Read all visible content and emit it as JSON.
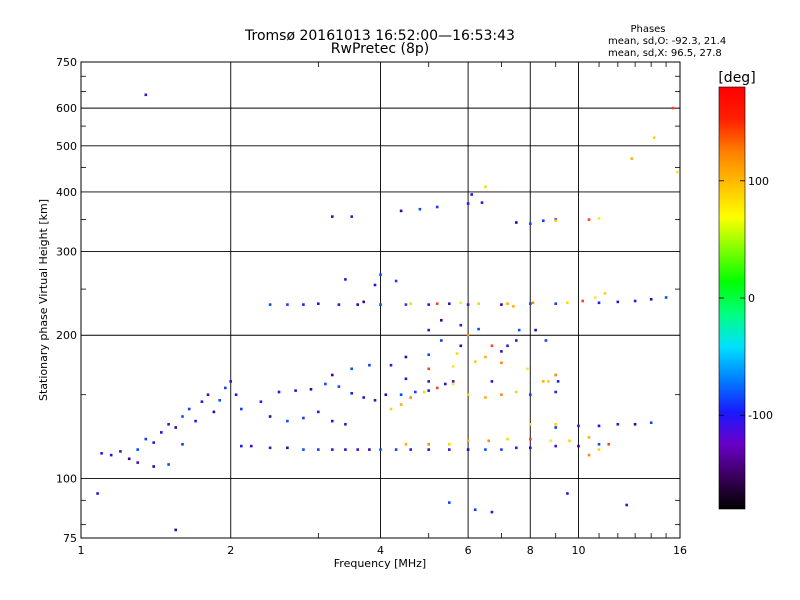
{
  "chart_data": {
    "type": "scatter",
    "title": "Tromsø 20161013 16:52:00—16:53:43",
    "subtitle": "RwPretec (8p)",
    "xlabel": "Frequency [MHz]",
    "ylabel": "Stationary phase Virtual Height [km]",
    "x_scale": "log",
    "y_scale": "log",
    "xlim": [
      1,
      16
    ],
    "ylim": [
      75,
      750
    ],
    "x_ticks": [
      1,
      2,
      4,
      6,
      8,
      10,
      16
    ],
    "x_tick_labels": [
      "1",
      "2",
      "4",
      "6",
      "8",
      "10",
      "16"
    ],
    "y_ticks": [
      75,
      100,
      200,
      300,
      400,
      500,
      600,
      750
    ],
    "y_tick_labels": [
      "75",
      "100",
      "200",
      "300",
      "400",
      "500",
      "600",
      "750"
    ],
    "x_minor_ticks": [
      3,
      5,
      7,
      9,
      11,
      12,
      13,
      14,
      15
    ],
    "y_minor_ticks": [
      80,
      90,
      150,
      250,
      350,
      450,
      550,
      650,
      700
    ],
    "grid": true,
    "legend": {
      "heading": "Phases",
      "lines": [
        "mean, sd,O: -92.3, 21.4",
        "mean, sd,X:  96.5, 27.8"
      ],
      "placement": "top-right"
    },
    "colorbar": {
      "label": "[deg]",
      "range": [
        -180,
        180
      ],
      "ticks": [
        100,
        0,
        -100
      ],
      "tick_labels": [
        "100",
        "0",
        "-100"
      ],
      "colors": [
        "#000000",
        "#3a005c",
        "#6a00c8",
        "#1a1aff",
        "#0080ff",
        "#00e0ff",
        "#00ff80",
        "#00ff00",
        "#80ff00",
        "#ffff00",
        "#ffc000",
        "#ff8000",
        "#ff2000",
        "#ff0000"
      ]
    },
    "series": [
      {
        "points": [
          [
            1.1,
            113
          ],
          [
            1.15,
            112
          ],
          [
            1.2,
            114
          ],
          [
            1.25,
            110
          ],
          [
            1.3,
            115
          ],
          [
            1.35,
            121
          ],
          [
            1.4,
            119
          ],
          [
            1.45,
            125
          ],
          [
            1.5,
            130
          ],
          [
            1.55,
            128
          ],
          [
            1.6,
            135
          ],
          [
            1.65,
            140
          ],
          [
            1.7,
            132
          ],
          [
            1.75,
            145
          ],
          [
            1.8,
            150
          ],
          [
            1.85,
            138
          ],
          [
            1.9,
            146
          ],
          [
            1.95,
            155
          ],
          [
            2.0,
            160
          ],
          [
            2.05,
            150
          ],
          [
            1.3,
            108
          ],
          [
            1.4,
            106
          ],
          [
            1.5,
            107
          ],
          [
            1.6,
            118
          ],
          [
            2.1,
            117
          ],
          [
            2.2,
            117
          ],
          [
            2.4,
            116
          ],
          [
            2.6,
            116
          ],
          [
            2.8,
            115
          ],
          [
            3.0,
            115
          ],
          [
            3.2,
            115
          ],
          [
            3.4,
            115
          ],
          [
            3.6,
            115
          ],
          [
            3.8,
            115
          ],
          [
            4.0,
            115
          ],
          [
            4.3,
            115
          ],
          [
            4.6,
            115
          ],
          [
            5.0,
            115
          ],
          [
            5.5,
            115
          ],
          [
            6.0,
            115
          ],
          [
            6.5,
            115
          ],
          [
            7.0,
            115
          ],
          [
            7.5,
            116
          ],
          [
            8.0,
            116
          ],
          [
            9.0,
            117
          ],
          [
            10.0,
            117
          ],
          [
            11.0,
            118
          ],
          [
            2.1,
            140
          ],
          [
            2.3,
            145
          ],
          [
            2.5,
            152
          ],
          [
            2.7,
            153
          ],
          [
            2.9,
            154
          ],
          [
            3.1,
            158
          ],
          [
            3.3,
            156
          ],
          [
            3.5,
            151
          ],
          [
            3.7,
            148
          ],
          [
            3.9,
            146
          ],
          [
            2.4,
            135
          ],
          [
            2.6,
            132
          ],
          [
            2.8,
            134
          ],
          [
            3.0,
            138
          ],
          [
            3.2,
            132
          ],
          [
            3.4,
            130
          ],
          [
            3.2,
            165
          ],
          [
            3.5,
            170
          ],
          [
            3.8,
            173
          ],
          [
            4.2,
            173
          ],
          [
            4.5,
            162
          ],
          [
            5.0,
            160
          ],
          [
            4.1,
            150
          ],
          [
            4.4,
            150
          ],
          [
            4.7,
            152
          ],
          [
            5.0,
            153
          ],
          [
            5.4,
            158
          ],
          [
            5.6,
            160
          ],
          [
            4.5,
            180
          ],
          [
            5.0,
            182
          ],
          [
            5.3,
            195
          ],
          [
            5.8,
            210
          ],
          [
            7.0,
            185
          ],
          [
            7.5,
            195
          ],
          [
            8.2,
            205
          ],
          [
            2.4,
            232
          ],
          [
            2.6,
            232
          ],
          [
            2.8,
            232
          ],
          [
            3.0,
            233
          ],
          [
            3.3,
            232
          ],
          [
            3.6,
            232
          ],
          [
            4.0,
            232
          ],
          [
            4.5,
            232
          ],
          [
            5.0,
            232
          ],
          [
            5.5,
            233
          ],
          [
            6.0,
            232
          ],
          [
            7.0,
            232
          ],
          [
            8.0,
            233
          ],
          [
            9.0,
            233
          ],
          [
            11.0,
            234
          ],
          [
            12.0,
            235
          ],
          [
            13.0,
            236
          ],
          [
            14.0,
            238
          ],
          [
            15.0,
            240
          ],
          [
            9.0,
            128
          ],
          [
            10.0,
            129
          ],
          [
            11.0,
            129
          ],
          [
            12.0,
            130
          ],
          [
            13.0,
            130
          ],
          [
            14.0,
            131
          ],
          [
            8.0,
            150
          ],
          [
            9.0,
            152
          ],
          [
            3.2,
            355
          ],
          [
            3.5,
            355
          ],
          [
            4.4,
            365
          ],
          [
            4.8,
            368
          ],
          [
            5.2,
            372
          ],
          [
            6.0,
            378
          ],
          [
            6.1,
            395
          ],
          [
            6.4,
            380
          ],
          [
            7.5,
            345
          ],
          [
            8.0,
            343
          ],
          [
            8.5,
            348
          ],
          [
            9.0,
            350
          ],
          [
            1.08,
            93
          ],
          [
            1.35,
            640
          ],
          [
            1.55,
            78
          ],
          [
            5.5,
            89
          ],
          [
            6.2,
            86
          ],
          [
            6.7,
            85
          ],
          [
            9.5,
            93
          ],
          [
            12.5,
            88
          ],
          [
            3.7,
            235
          ],
          [
            4.0,
            268
          ],
          [
            4.3,
            260
          ],
          [
            3.4,
            262
          ],
          [
            3.9,
            255
          ],
          [
            5.0,
            205
          ],
          [
            5.8,
            190
          ],
          [
            7.6,
            205
          ],
          [
            8.6,
            195
          ],
          [
            9.1,
            160
          ],
          [
            6.7,
            160
          ],
          [
            7.2,
            190
          ],
          [
            5.3,
            215
          ],
          [
            6.3,
            206
          ]
        ]
      },
      {
        "points": [
          [
            4.2,
            140
          ],
          [
            4.4,
            143
          ],
          [
            4.6,
            148
          ],
          [
            4.9,
            152
          ],
          [
            5.2,
            155
          ],
          [
            5.6,
            158
          ],
          [
            6.0,
            150
          ],
          [
            6.5,
            148
          ],
          [
            7.0,
            150
          ],
          [
            7.5,
            152
          ],
          [
            5.0,
            170
          ],
          [
            5.6,
            172
          ],
          [
            6.2,
            176
          ],
          [
            6.5,
            180
          ],
          [
            7.0,
            175
          ],
          [
            4.6,
            233
          ],
          [
            5.2,
            233
          ],
          [
            5.8,
            234
          ],
          [
            6.3,
            233
          ],
          [
            7.2,
            233
          ],
          [
            8.1,
            234
          ],
          [
            9.5,
            234
          ],
          [
            10.2,
            236
          ],
          [
            10.8,
            240
          ],
          [
            11.3,
            245
          ],
          [
            6.0,
            120
          ],
          [
            6.6,
            120
          ],
          [
            7.2,
            121
          ],
          [
            8.0,
            121
          ],
          [
            8.8,
            120
          ],
          [
            9.6,
            120
          ],
          [
            10.5,
            122
          ],
          [
            10.5,
            112
          ],
          [
            11.0,
            115
          ],
          [
            11.5,
            118
          ],
          [
            8.0,
            130
          ],
          [
            9.0,
            130
          ],
          [
            4.5,
            118
          ],
          [
            5.0,
            118
          ],
          [
            5.5,
            118
          ],
          [
            10.5,
            350
          ],
          [
            11.0,
            352
          ],
          [
            9.0,
            348
          ],
          [
            8.5,
            160
          ],
          [
            9.0,
            165
          ],
          [
            6.5,
            410
          ],
          [
            15.5,
            600
          ],
          [
            15.8,
            440
          ],
          [
            14.2,
            520
          ],
          [
            12.8,
            470
          ],
          [
            6.0,
            200
          ],
          [
            5.7,
            183
          ],
          [
            6.7,
            190
          ],
          [
            7.9,
            170
          ],
          [
            8.7,
            160
          ],
          [
            7.4,
            230
          ]
        ]
      }
    ]
  }
}
